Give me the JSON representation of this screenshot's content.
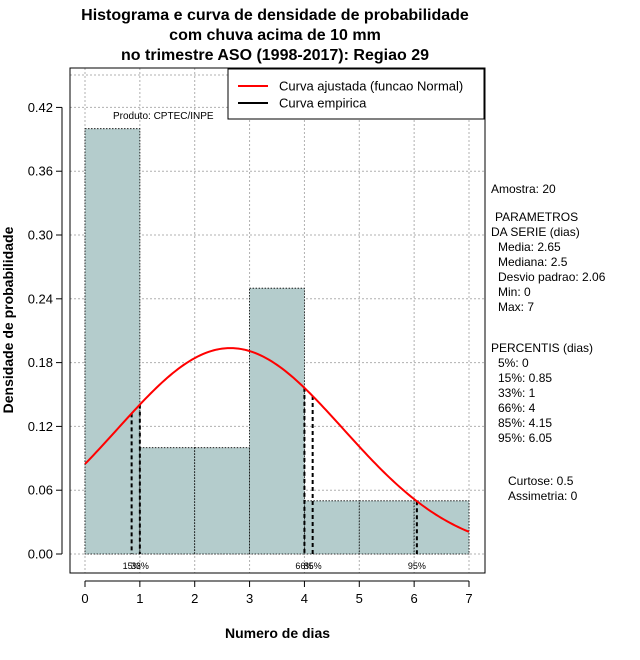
{
  "chart_data": {
    "type": "histogram",
    "title_lines": [
      "Histograma e curva de densidade de probabilidade",
      "com chuva acima de 10 mm",
      "no trimestre ASO (1998-2017): Regiao 29"
    ],
    "xlabel": "Numero de dias",
    "ylabel": "Densidade de probabilidade",
    "xlim": [
      0,
      7
    ],
    "ylim": [
      0,
      0.42
    ],
    "x_ticks": [
      0,
      1,
      2,
      3,
      4,
      5,
      6,
      7
    ],
    "x_tick_labels": [
      "0",
      "1",
      "2",
      "3",
      "4",
      "5",
      "6",
      "7"
    ],
    "y_ticks": [
      0,
      0.06,
      0.12,
      0.18,
      0.24,
      0.3,
      0.36,
      0.42
    ],
    "y_tick_labels": [
      "0.00",
      "0.06",
      "0.12",
      "0.18",
      "0.24",
      "0.30",
      "0.36",
      "0.42"
    ],
    "grid": true,
    "bins": [
      {
        "from": 0,
        "to": 1,
        "density": 0.4
      },
      {
        "from": 1,
        "to": 2,
        "density": 0.1
      },
      {
        "from": 2,
        "to": 3,
        "density": 0.1
      },
      {
        "from": 3,
        "to": 4,
        "density": 0.25
      },
      {
        "from": 4,
        "to": 5,
        "density": 0.05
      },
      {
        "from": 5,
        "to": 6,
        "density": 0.05
      },
      {
        "from": 6,
        "to": 7,
        "density": 0.05
      }
    ],
    "normal_curve": {
      "name": "Curva ajustada (funcao Normal)",
      "mean": 2.65,
      "sd": 2.06,
      "color": "#ff0000"
    },
    "empirical_curve": {
      "name": "Curva empirica",
      "color": "#000000"
    },
    "legend": {
      "position": "top-right",
      "entries": [
        "Curva ajustada (funcao Normal)",
        "Curva empirica"
      ]
    },
    "percentile_markers": [
      {
        "label": "15%",
        "x": 0.85
      },
      {
        "label": "33%",
        "x": 1
      },
      {
        "label": "66%",
        "x": 4
      },
      {
        "label": "85%",
        "x": 4.15
      },
      {
        "label": "95%",
        "x": 6.05
      }
    ],
    "annotation": "Produto: CPTEC/INPE",
    "bar_color": "#b4cccc"
  },
  "stats": {
    "amostra": "Amostra: 20",
    "parametros_title_1": "PARAMETROS",
    "parametros_title_2": "DA SERIE (dias)",
    "media": "Media: 2.65",
    "mediana": "Mediana: 2.5",
    "desvio": "Desvio padrao: 2.06",
    "min": "Min: 0",
    "max": "Max: 7",
    "percentis_title": "PERCENTIS (dias)",
    "p5": "5%: 0",
    "p15": "15%: 0.85",
    "p33": "33%: 1",
    "p66": "66%: 4",
    "p85": "85%: 4.15",
    "p95": "95%: 6.05",
    "curtose": "Curtose: 0.5",
    "assimetria": "Assimetria: 0"
  }
}
